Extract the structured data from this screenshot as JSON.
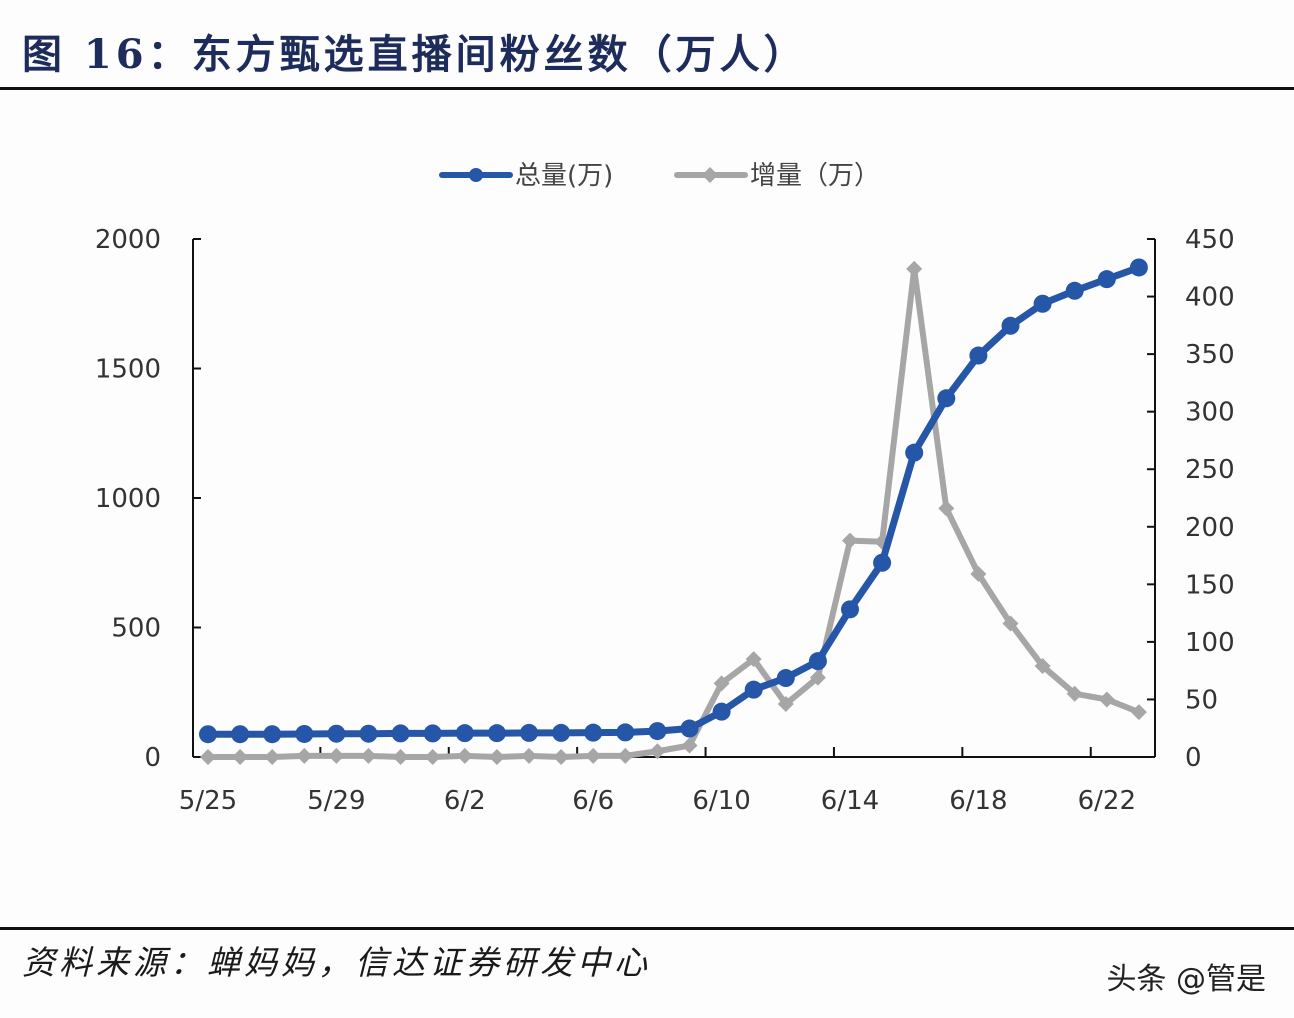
{
  "header": {
    "title": "图 16：东方甄选直播间粉丝数（万人）"
  },
  "footer": {
    "source": "资料来源：蝉妈妈，信达证券研发中心",
    "watermark": "头条 @管是"
  },
  "colors": {
    "total": "#2556a8",
    "increment": "#a6a6a6",
    "axis": "#111111",
    "title": "#1d2c5a"
  },
  "chart_data": {
    "type": "line",
    "title": "图 16：东方甄选直播间粉丝数（万人）",
    "xlabel": "",
    "ylabel": "",
    "y2label": "",
    "ylim": [
      0,
      2000
    ],
    "y2lim": [
      0,
      450
    ],
    "yticks": [
      0,
      500,
      1000,
      1500,
      2000
    ],
    "y2ticks": [
      0,
      50,
      100,
      150,
      200,
      250,
      300,
      350,
      400,
      450
    ],
    "grid": false,
    "legend_position": "top",
    "x": [
      "5/25",
      "5/26",
      "5/27",
      "5/28",
      "5/29",
      "5/30",
      "5/31",
      "6/1",
      "6/2",
      "6/3",
      "6/4",
      "6/5",
      "6/6",
      "6/7",
      "6/8",
      "6/9",
      "6/10",
      "6/11",
      "6/12",
      "6/13",
      "6/14",
      "6/15",
      "6/16",
      "6/17",
      "6/18",
      "6/19",
      "6/20",
      "6/21",
      "6/22",
      "6/23"
    ],
    "xtick_labels": [
      "5/25",
      "5/29",
      "6/2",
      "6/6",
      "6/10",
      "6/14",
      "6/18",
      "6/22"
    ],
    "series": [
      {
        "name": "总量(万)",
        "axis": "left",
        "marker": "circle",
        "values": [
          88,
          88,
          88,
          89,
          90,
          90,
          91,
          91,
          92,
          92,
          93,
          93,
          94,
          95,
          100,
          110,
          175,
          260,
          305,
          370,
          570,
          750,
          1175,
          1385,
          1550,
          1665,
          1750,
          1800,
          1845,
          1890
        ]
      },
      {
        "name": "增量（万）",
        "axis": "right",
        "marker": "diamond",
        "values": [
          0,
          0,
          0,
          1,
          1,
          1,
          0,
          0,
          1,
          0,
          1,
          0,
          1,
          1,
          5,
          10,
          64,
          85,
          46,
          69,
          188,
          187,
          424,
          216,
          159,
          116,
          79,
          55,
          50,
          39
        ]
      }
    ]
  }
}
